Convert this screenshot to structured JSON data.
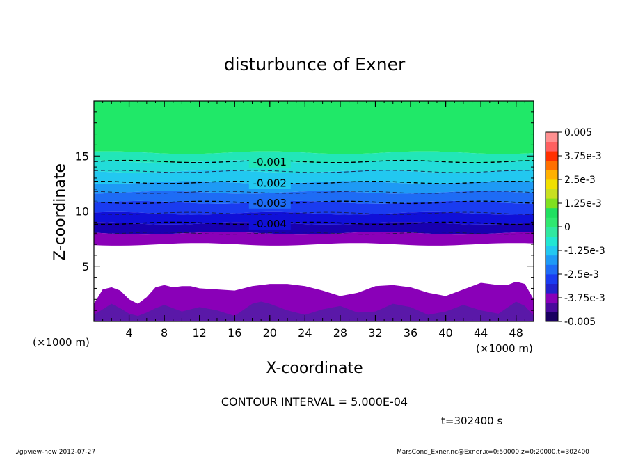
{
  "chart_data": {
    "type": "heatmap",
    "title": "disturbunce of Exner",
    "xlabel": "X-coordinate",
    "ylabel": "Z-coordinate",
    "x_unit_left": "(×1000 m)",
    "x_unit_right": "(×1000 m)",
    "xlim": [
      0,
      50
    ],
    "ylim": [
      0,
      20
    ],
    "x_ticks": [
      4,
      8,
      12,
      16,
      20,
      24,
      28,
      32,
      36,
      40,
      44,
      48
    ],
    "y_ticks": [
      5,
      10,
      15
    ],
    "contour_interval_label": "CONTOUR INTERVAL = 5.000E-04",
    "time_label": "t=302400 s",
    "footer_left": "./gpview-new  2012-07-27",
    "footer_right": "MarsCond_Exner.nc@Exner,x=0:50000,z=0:20000,t=302400",
    "colorbar": {
      "min": -0.005,
      "max": 0.005,
      "tick_labels": [
        "0.005",
        "3.75e-3",
        "2.5e-3",
        "1.25e-3",
        "0",
        "-1.25e-3",
        "-2.5e-3",
        "-3.75e-3",
        "-0.005"
      ],
      "tick_values": [
        0.005,
        0.00375,
        0.0025,
        0.00125,
        0,
        -0.00125,
        -0.0025,
        -0.00375,
        -0.005
      ],
      "band_colors": [
        "#1a0060",
        "#4a0a9c",
        "#8800b8",
        "#2222cc",
        "#1a3cf0",
        "#1e6cf5",
        "#1e9af5",
        "#22c8f0",
        "#22e6d2",
        "#30e8a0",
        "#30e870",
        "#20e060",
        "#80e020",
        "#c8e020",
        "#f0e000",
        "#ffb000",
        "#ff7000",
        "#ff3000",
        "#ff6060",
        "#ff9090"
      ]
    },
    "contour_labels": [
      {
        "text": "-0.001",
        "value": -0.001,
        "z": 14.5
      },
      {
        "text": "-0.002",
        "value": -0.002,
        "z": 12.6
      },
      {
        "text": "-0.003",
        "value": -0.003,
        "z": 10.8
      },
      {
        "text": "-0.004",
        "value": -0.004,
        "z": 8.9
      }
    ],
    "dashed_contour_z": [
      14.5,
      13.6,
      12.6,
      11.7,
      10.8,
      9.8,
      8.9,
      8.0
    ],
    "field_bands": [
      {
        "z0": 15.3,
        "z1": 20.0,
        "color": "#20e868"
      },
      {
        "z0": 14.5,
        "z1": 15.3,
        "color": "#22e6b8"
      },
      {
        "z0": 13.6,
        "z1": 14.5,
        "color": "#22dcd8"
      },
      {
        "z0": 12.6,
        "z1": 13.6,
        "color": "#22c8f0"
      },
      {
        "z0": 11.7,
        "z1": 12.6,
        "color": "#1e9af5"
      },
      {
        "z0": 10.8,
        "z1": 11.7,
        "color": "#1e6cf5"
      },
      {
        "z0": 9.8,
        "z1": 10.8,
        "color": "#1a3cf0"
      },
      {
        "z0": 8.9,
        "z1": 9.8,
        "color": "#1010d8"
      },
      {
        "z0": 8.0,
        "z1": 8.9,
        "color": "#1800b0"
      },
      {
        "z0": 7.0,
        "z1": 8.0,
        "color": "#8a00b8"
      }
    ],
    "bottom_region": {
      "color": "#8a00b8",
      "inner_color": "#5a18a8",
      "top_profile_x": [
        0,
        1,
        2,
        3,
        4,
        5,
        6,
        7,
        8,
        9,
        10,
        11,
        12,
        14,
        16,
        18,
        20,
        22,
        24,
        26,
        28,
        30,
        32,
        34,
        36,
        38,
        40,
        42,
        44,
        46,
        47,
        48,
        49,
        50
      ],
      "top_profile_z": [
        1.6,
        2.9,
        3.1,
        2.8,
        2.0,
        1.6,
        2.2,
        3.1,
        3.3,
        3.1,
        3.2,
        3.2,
        3.0,
        2.9,
        2.8,
        3.2,
        3.4,
        3.4,
        3.2,
        2.8,
        2.3,
        2.6,
        3.2,
        3.3,
        3.1,
        2.6,
        2.3,
        2.9,
        3.5,
        3.3,
        3.3,
        3.6,
        3.4,
        2.0
      ],
      "inner_profile_x": [
        0,
        2,
        3,
        4,
        5,
        6,
        7,
        8,
        9,
        10,
        12,
        14,
        16,
        18,
        19,
        20,
        22,
        24,
        26,
        28,
        30,
        32,
        34,
        36,
        38,
        40,
        42,
        44,
        46,
        48,
        49,
        50
      ],
      "inner_profile_z": [
        0.6,
        1.6,
        1.2,
        0.7,
        0.5,
        0.8,
        1.2,
        1.5,
        1.2,
        0.9,
        1.3,
        1.0,
        0.5,
        1.6,
        1.8,
        1.6,
        1.0,
        0.6,
        1.1,
        1.4,
        0.8,
        0.9,
        1.6,
        1.3,
        0.6,
        0.9,
        1.5,
        1.0,
        0.7,
        1.8,
        1.4,
        0.5
      ]
    }
  }
}
